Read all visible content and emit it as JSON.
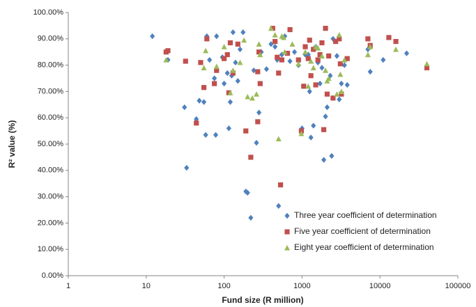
{
  "chart_data": {
    "type": "scatter",
    "x_label": "Fund size (R million)",
    "y_label": "R² value (%)",
    "xlog": true,
    "xlim": [
      1,
      100000
    ],
    "xticks": [
      1,
      10,
      100,
      1000,
      10000,
      100000
    ],
    "ylim": [
      0,
      100
    ],
    "yticks": [
      {
        "value": 0,
        "label": "0.00%"
      },
      {
        "value": 10,
        "label": "10.00%"
      },
      {
        "value": 20,
        "label": "20.00%"
      },
      {
        "value": 30,
        "label": "30.00%"
      },
      {
        "value": 40,
        "label": "40.00%"
      },
      {
        "value": 50,
        "label": "50.00%"
      },
      {
        "value": 60,
        "label": "60.00%"
      },
      {
        "value": 70,
        "label": "70.00%"
      },
      {
        "value": 80,
        "label": "80.00%"
      },
      {
        "value": 90,
        "label": "90.00%"
      },
      {
        "value": 100,
        "label": "100.00%"
      }
    ],
    "legend": "lower right",
    "series": [
      {
        "name": "Three year coefficient of determination",
        "color": "#4f81bd",
        "marker": "diamond",
        "x": [
          12,
          19,
          31,
          33,
          44,
          48,
          55,
          58,
          60,
          65,
          75,
          78,
          80,
          95,
          100,
          110,
          115,
          120,
          125,
          130,
          140,
          150,
          160,
          175,
          190,
          200,
          220,
          240,
          260,
          280,
          300,
          350,
          400,
          450,
          480,
          500,
          550,
          600,
          700,
          800,
          900,
          1000,
          1100,
          1200,
          1300,
          1400,
          1500,
          1700,
          1900,
          2000,
          2100,
          2400,
          2500,
          2800,
          3000,
          3200,
          3500,
          3800,
          7000,
          7500,
          11000,
          22000,
          2300,
          1800,
          1600,
          1250
        ],
        "values": [
          91,
          82,
          64,
          41,
          59.5,
          66.5,
          66,
          53.5,
          91,
          82,
          75,
          53.5,
          91,
          83,
          73,
          77,
          56,
          66,
          76,
          92.5,
          81,
          74,
          86,
          92.5,
          32,
          31.5,
          22,
          78,
          50.5,
          62,
          85,
          78.5,
          88,
          87,
          82,
          26.5,
          84,
          91,
          81.5,
          85,
          80,
          56,
          84,
          84,
          52.5,
          57,
          87,
          73,
          44,
          60.5,
          64,
          45.5,
          90,
          83.5,
          67,
          73,
          80,
          72.5,
          86,
          77.5,
          82,
          84.5,
          76,
          79,
          81,
          70
        ]
      },
      {
        "name": "Five year coefficient of determination",
        "color": "#c0504d",
        "marker": "square",
        "x": [
          18,
          19,
          32,
          44,
          50,
          55,
          60,
          75,
          80,
          100,
          110,
          115,
          120,
          130,
          150,
          190,
          220,
          270,
          270,
          280,
          290,
          420,
          450,
          480,
          500,
          530,
          550,
          650,
          700,
          900,
          980,
          1050,
          1100,
          1200,
          1250,
          1300,
          1400,
          1500,
          1600,
          1700,
          1800,
          1900,
          2000,
          2100,
          2200,
          2500,
          2700,
          3000,
          3100,
          3200,
          3800,
          7000,
          7500,
          13000,
          16000,
          40000
        ],
        "values": [
          85,
          85.5,
          81.5,
          58,
          81,
          71.5,
          90,
          73,
          78,
          82.5,
          84,
          69.5,
          88.5,
          77,
          88,
          55,
          45,
          77.5,
          58.5,
          85,
          73,
          94,
          89,
          83,
          77,
          34.5,
          82,
          84.5,
          93.5,
          82,
          55,
          72,
          87,
          82.5,
          89.5,
          76,
          86,
          72.5,
          82,
          84,
          88.5,
          55.5,
          94,
          69,
          83.5,
          67.5,
          89,
          90,
          80.5,
          69,
          82.5,
          90,
          87.5,
          90.5,
          89,
          79
        ]
      },
      {
        "name": "Eight year coefficient of determination",
        "color": "#9bbb59",
        "marker": "triangle",
        "x": [
          18,
          55,
          58,
          80,
          100,
          120,
          130,
          160,
          180,
          200,
          230,
          260,
          280,
          290,
          400,
          450,
          500,
          550,
          580,
          600,
          750,
          900,
          980,
          1100,
          1200,
          1300,
          1400,
          1500,
          1600,
          1800,
          2000,
          2100,
          2200,
          2800,
          3000,
          3100,
          3200,
          3500,
          7000,
          7500,
          16000,
          40000
        ],
        "values": [
          82,
          79,
          85.5,
          79.5,
          87,
          69.5,
          78,
          81,
          89.5,
          68,
          67.5,
          69,
          88,
          84,
          94,
          91.5,
          52,
          91,
          90.5,
          85,
          88,
          80.5,
          54,
          85,
          72,
          81.5,
          79,
          87,
          86.5,
          83.5,
          78,
          74,
          75,
          69,
          91.5,
          76.5,
          70,
          82,
          84,
          87,
          86,
          80.5
        ]
      }
    ]
  }
}
